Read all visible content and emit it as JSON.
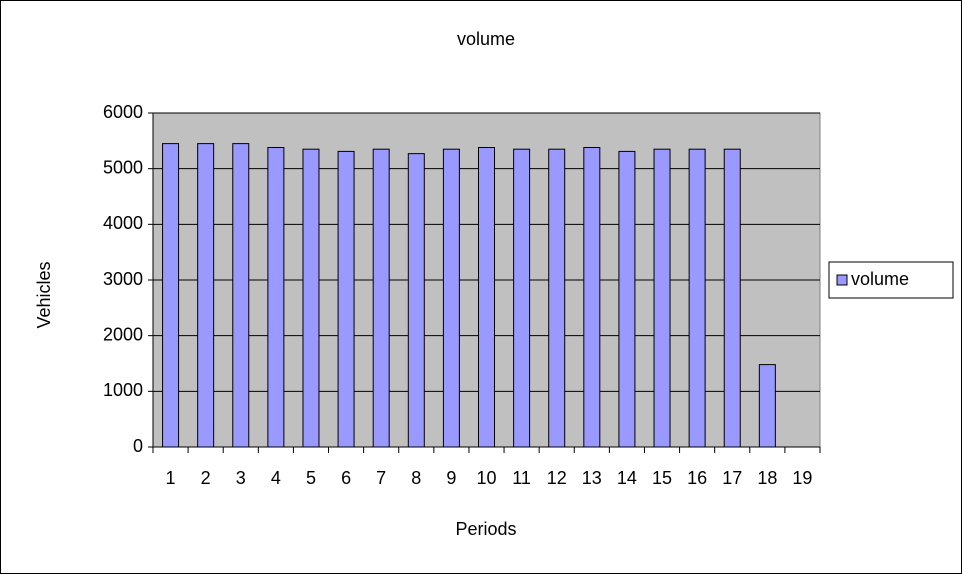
{
  "chart_data": {
    "type": "bar",
    "title": "volume",
    "x_label": "Periods",
    "y_label": "Vehicles",
    "categories": [
      "1",
      "2",
      "3",
      "4",
      "5",
      "6",
      "7",
      "8",
      "9",
      "10",
      "11",
      "12",
      "13",
      "14",
      "15",
      "16",
      "17",
      "18",
      "19"
    ],
    "series": [
      {
        "name": "volume",
        "color": "#9999ff",
        "values": [
          5450,
          5450,
          5450,
          5380,
          5350,
          5310,
          5350,
          5270,
          5350,
          5380,
          5350,
          5350,
          5380,
          5310,
          5350,
          5350,
          5350,
          1480,
          null
        ]
      }
    ],
    "ylim": [
      0,
      6000
    ],
    "yticks": [
      0,
      1000,
      2000,
      3000,
      4000,
      5000,
      6000
    ],
    "grid": true,
    "legend": "right",
    "plot_background": "#c0c0c0"
  }
}
